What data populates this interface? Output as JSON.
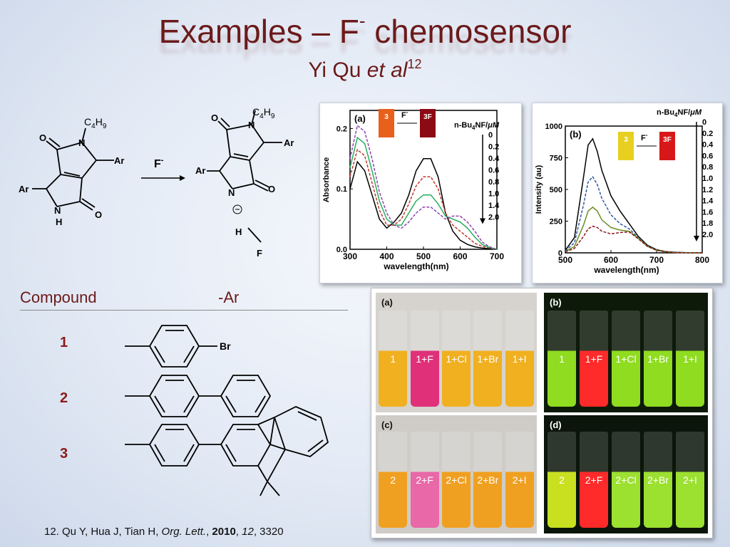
{
  "slide": {
    "title_main": "Examples – F",
    "title_sup": "-",
    "title_tail": " chemosensor",
    "subtitle_author": "Yi Qu ",
    "subtitle_etal": "et al",
    "subtitle_ref": "12"
  },
  "scheme": {
    "reagent": "F",
    "reagent_charge": "-",
    "substituent_alkyl": "C",
    "alkyl_sub1": "4",
    "alkyl_h": "H",
    "alkyl_sub2": "9",
    "aryl": "Ar",
    "atom_N": "N",
    "atom_O": "O",
    "atom_H": "H",
    "atom_F": "F"
  },
  "compound_table": {
    "header_compound": "Compound",
    "header_ar": "-Ar",
    "rows": [
      {
        "id": "1",
        "substituent_label": "Br"
      },
      {
        "id": "2",
        "substituent_label": ""
      },
      {
        "id": "3",
        "substituent_label": ""
      }
    ]
  },
  "citation": {
    "prefix": "12. Qu Y, Hua J, Tian H, ",
    "journal": "Org. Lett.",
    "sep1": ", ",
    "year": "2010",
    "sep2": ", ",
    "volume": "12",
    "pages": ", 3320"
  },
  "chart_data": [
    {
      "type": "line",
      "panel_label": "(a)",
      "xlabel": "wavelength(nm)",
      "ylabel": "Absorbance",
      "xlim": [
        300,
        700
      ],
      "ylim": [
        0.0,
        0.23
      ],
      "x_ticks": [
        "300",
        "400",
        "500",
        "600",
        "700"
      ],
      "y_ticks": [
        "0.0",
        "0.1",
        "0.2"
      ],
      "legend_title": "n-Bu4NF/μM",
      "legend_title_parts": {
        "a": "n-Bu",
        "sub": "4",
        "b": "NF/",
        "unit": "μM"
      },
      "legend_entries": [
        "0",
        "0.2",
        "0.4",
        "0.6",
        "0.8",
        "1.0",
        "1.4",
        "2.0"
      ],
      "inset": {
        "from": "3",
        "arrow": "F",
        "arrow_charge": "-",
        "to": "3F"
      },
      "x": [
        300,
        320,
        340,
        360,
        380,
        400,
        420,
        440,
        460,
        480,
        500,
        520,
        540,
        560,
        580,
        600,
        620,
        640,
        660,
        680,
        700
      ],
      "series": [
        {
          "name": "0",
          "values": [
            0.1,
            0.145,
            0.13,
            0.09,
            0.05,
            0.035,
            0.045,
            0.06,
            0.09,
            0.13,
            0.15,
            0.15,
            0.12,
            0.06,
            0.03,
            0.015,
            0.008,
            0.004,
            0.002,
            0.001,
            0.0
          ]
        },
        {
          "name": "0.4",
          "values": [
            0.12,
            0.165,
            0.155,
            0.11,
            0.065,
            0.04,
            0.04,
            0.05,
            0.075,
            0.105,
            0.12,
            0.12,
            0.1,
            0.06,
            0.04,
            0.03,
            0.02,
            0.01,
            0.005,
            0.002,
            0.0
          ]
        },
        {
          "name": "1.0",
          "values": [
            0.135,
            0.185,
            0.175,
            0.13,
            0.08,
            0.05,
            0.04,
            0.04,
            0.06,
            0.08,
            0.09,
            0.09,
            0.075,
            0.055,
            0.05,
            0.045,
            0.035,
            0.02,
            0.008,
            0.003,
            0.0
          ]
        },
        {
          "name": "2.0",
          "values": [
            0.15,
            0.205,
            0.195,
            0.15,
            0.095,
            0.06,
            0.04,
            0.035,
            0.045,
            0.06,
            0.07,
            0.07,
            0.06,
            0.05,
            0.055,
            0.055,
            0.045,
            0.03,
            0.012,
            0.004,
            0.0
          ]
        }
      ],
      "colors": [
        "#000000",
        "#c0392b",
        "#27ae60",
        "#8e44ad"
      ]
    },
    {
      "type": "line",
      "panel_label": "(b)",
      "xlabel": "wavelength(nm)",
      "ylabel": "Intensity (au)",
      "xlim": [
        500,
        800
      ],
      "ylim": [
        0,
        1000
      ],
      "x_ticks": [
        "500",
        "600",
        "700",
        "800"
      ],
      "y_ticks": [
        "0",
        "250",
        "500",
        "750",
        "1000"
      ],
      "legend_title_parts": {
        "a": "n-Bu",
        "sub": "4",
        "b": "NF/",
        "unit": "μM"
      },
      "legend_entries": [
        "0",
        "0.2",
        "0.4",
        "0.6",
        "0.8",
        "1.0",
        "1.2",
        "1.4",
        "1.6",
        "1.8",
        "2.0"
      ],
      "inset": {
        "from": "3",
        "arrow": "F",
        "arrow_charge": "-",
        "to": "3F"
      },
      "x": [
        500,
        520,
        540,
        550,
        560,
        570,
        580,
        600,
        620,
        640,
        660,
        680,
        700,
        720,
        740,
        760,
        780,
        800
      ],
      "series": [
        {
          "name": "0",
          "values": [
            20,
            120,
            600,
            850,
            900,
            800,
            650,
            450,
            330,
            230,
            130,
            60,
            25,
            10,
            5,
            2,
            1,
            0
          ]
        },
        {
          "name": "0.6",
          "values": [
            15,
            80,
            380,
            560,
            600,
            540,
            430,
            300,
            230,
            190,
            120,
            55,
            22,
            9,
            4,
            2,
            1,
            0
          ]
        },
        {
          "name": "1.2",
          "values": [
            10,
            50,
            220,
            330,
            360,
            330,
            260,
            200,
            180,
            170,
            115,
            52,
            20,
            8,
            3,
            1,
            0,
            0
          ]
        },
        {
          "name": "2.0",
          "values": [
            8,
            35,
            130,
            190,
            210,
            200,
            170,
            150,
            160,
            165,
            110,
            50,
            20,
            8,
            3,
            1,
            0,
            0
          ]
        }
      ],
      "colors": [
        "#000000",
        "#2c5aa0",
        "#6b8e23",
        "#8b1a1a"
      ]
    }
  ],
  "photos": [
    {
      "label": "(a)",
      "vials": [
        "1",
        "1+F",
        "1+Cl",
        "1+Br",
        "1+I"
      ],
      "liquid_colors": [
        "#f0b020",
        "#e0307a",
        "#f0b020",
        "#f0b020",
        "#f0b020"
      ],
      "text_color": "#ffffff"
    },
    {
      "label": "(b)",
      "vials": [
        "1",
        "1+F",
        "1+Cl",
        "1+Br",
        "1+I"
      ],
      "liquid_colors": [
        "#8fdc20",
        "#ff2a2a",
        "#8fdc20",
        "#8fdc20",
        "#8fdc20"
      ],
      "text_color": "#ffffff"
    },
    {
      "label": "(c)",
      "vials": [
        "2",
        "2+F",
        "2+Cl",
        "2+Br",
        "2+I"
      ],
      "liquid_colors": [
        "#f0a020",
        "#e868a8",
        "#f0a020",
        "#f0a020",
        "#f0a020"
      ],
      "text_color": "#ffffff"
    },
    {
      "label": "(d)",
      "vials": [
        "2",
        "2+F",
        "2+Cl",
        "2+Br",
        "2+I"
      ],
      "liquid_colors": [
        "#c8e020",
        "#ff2a2a",
        "#9ce030",
        "#9ce030",
        "#9ce030"
      ],
      "text_color": "#ffffff"
    }
  ]
}
